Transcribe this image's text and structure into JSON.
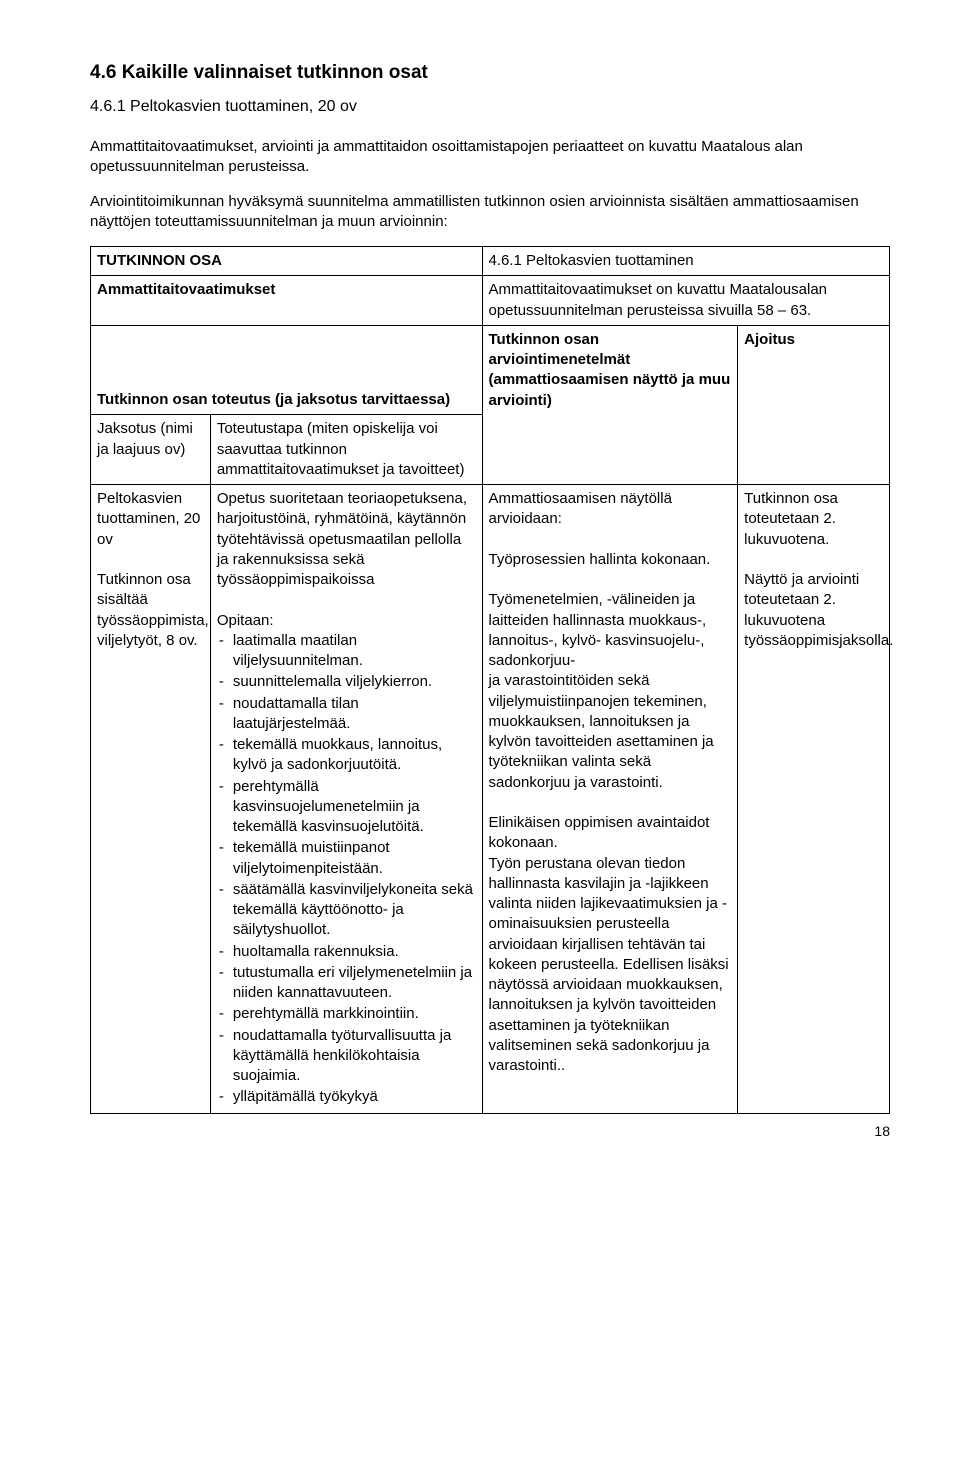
{
  "section_number": "4.6 Kaikille valinnaiset tutkinnon osat",
  "subsection_number": "4.6.1 Peltokasvien tuottaminen, 20 ov",
  "intro1": "Ammattitaitovaatimukset, arviointi ja ammattitaidon osoittamistapojen periaatteet on kuvattu Maatalous alan opetussuunnitelman perusteissa.",
  "intro2": "Arviointitoimikunnan hyväksymä suunnitelma ammatillisten tutkinnon osien arvioinnista sisältäen ammattiosaamisen näyttöjen toteuttamissuunnitelman ja muun arvioinnin:",
  "row1": {
    "left": "TUTKINNON OSA",
    "right": "4.6.1 Peltokasvien tuottaminen"
  },
  "row2": {
    "left": "Ammattitaitovaatimukset",
    "right": "Ammattitaitovaatimukset on kuvattu Maatalousalan opetussuunnitelman perusteissa sivuilla 58 – 63."
  },
  "row3": {
    "left": "Tutkinnon osan toteutus (ja jaksotus tarvittaessa)",
    "mid": "Tutkinnon osan arviointimenetelmät",
    "mid2": "(ammattiosaamisen näyttö ja muu arviointi)",
    "right": "Ajoitus"
  },
  "row4": {
    "c1": "Jaksotus (nimi ja laajuus ov)",
    "c2": "Toteutustapa (miten opiskelija voi saavuttaa tutkinnon ammattitaitovaatimukset ja tavoitteet)"
  },
  "row5": {
    "c1a": "Peltokasvien tuottaminen, 20 ov",
    "c1b": "Tutkinnon osa sisältää työssäoppimista, viljelytyöt, 8 ov.",
    "c2_intro": "Opetus suoritetaan teoriaopetuksena, harjoitustöinä, ryhmätöinä, käytännön työtehtävissä opetusmaatilan pellolla ja rakennuksissa sekä työssäoppimispaikoissa",
    "c2_opitaan": "Opitaan:",
    "c2_items": [
      "laatimalla maatilan viljelysuunnitelman.",
      "suunnittelemalla viljelykierron.",
      "noudattamalla tilan laatujärjestelmää.",
      "tekemällä muokkaus, lannoitus, kylvö ja sadonkorjuutöitä.",
      "perehtymällä kasvinsuojelumenetelmiin ja tekemällä kasvinsuojelutöitä.",
      "tekemällä muistiinpanot viljelytoimenpiteistään.",
      "säätämällä kasvinviljelykoneita sekä tekemällä käyttöönotto- ja säilytyshuollot.",
      "huoltamalla rakennuksia.",
      "tutustumalla eri viljelymenetelmiin ja niiden kannattavuuteen.",
      "perehtymällä markkinointiin.",
      "noudattamalla työturvallisuutta ja käyttämällä henkilökohtaisia suojaimia.",
      "ylläpitämällä työkykyä"
    ],
    "c3_p1": "Ammattiosaamisen näytöllä arvioidaan:",
    "c3_p2": "Työprosessien hallinta kokonaan.",
    "c3_p3": "Työmenetelmien, -välineiden ja laitteiden hallinnasta muokkaus-, lannoitus-, kylvö- kasvinsuojelu-, sadonkorjuu-",
    "c3_p3b": "ja varastointitöiden sekä viljelymuistiinpanojen tekeminen, muokkauksen, lannoituksen ja kylvön tavoitteiden asettaminen ja työtekniikan valinta sekä sadonkorjuu ja varastointi.",
    "c3_p4": "Elinikäisen oppimisen avaintaidot kokonaan.",
    "c3_p5": "Työn perustana olevan tiedon hallinnasta kasvilajin ja -lajikkeen valinta niiden lajikevaatimuksien ja - ominaisuuksien perusteella arvioidaan kirjallisen tehtävän tai kokeen perusteella. Edellisen lisäksi näytössä arvioidaan muokkauksen, lannoituksen ja kylvön tavoitteiden asettaminen ja työtekniikan valitseminen sekä sadonkorjuu ja varastointi..",
    "c4_p1": "Tutkinnon osa toteutetaan 2. lukuvuotena.",
    "c4_p2": "Näyttö ja arviointi toteutetaan 2. lukuvuotena työssäoppimisjaksolla."
  },
  "page_number": "18"
}
